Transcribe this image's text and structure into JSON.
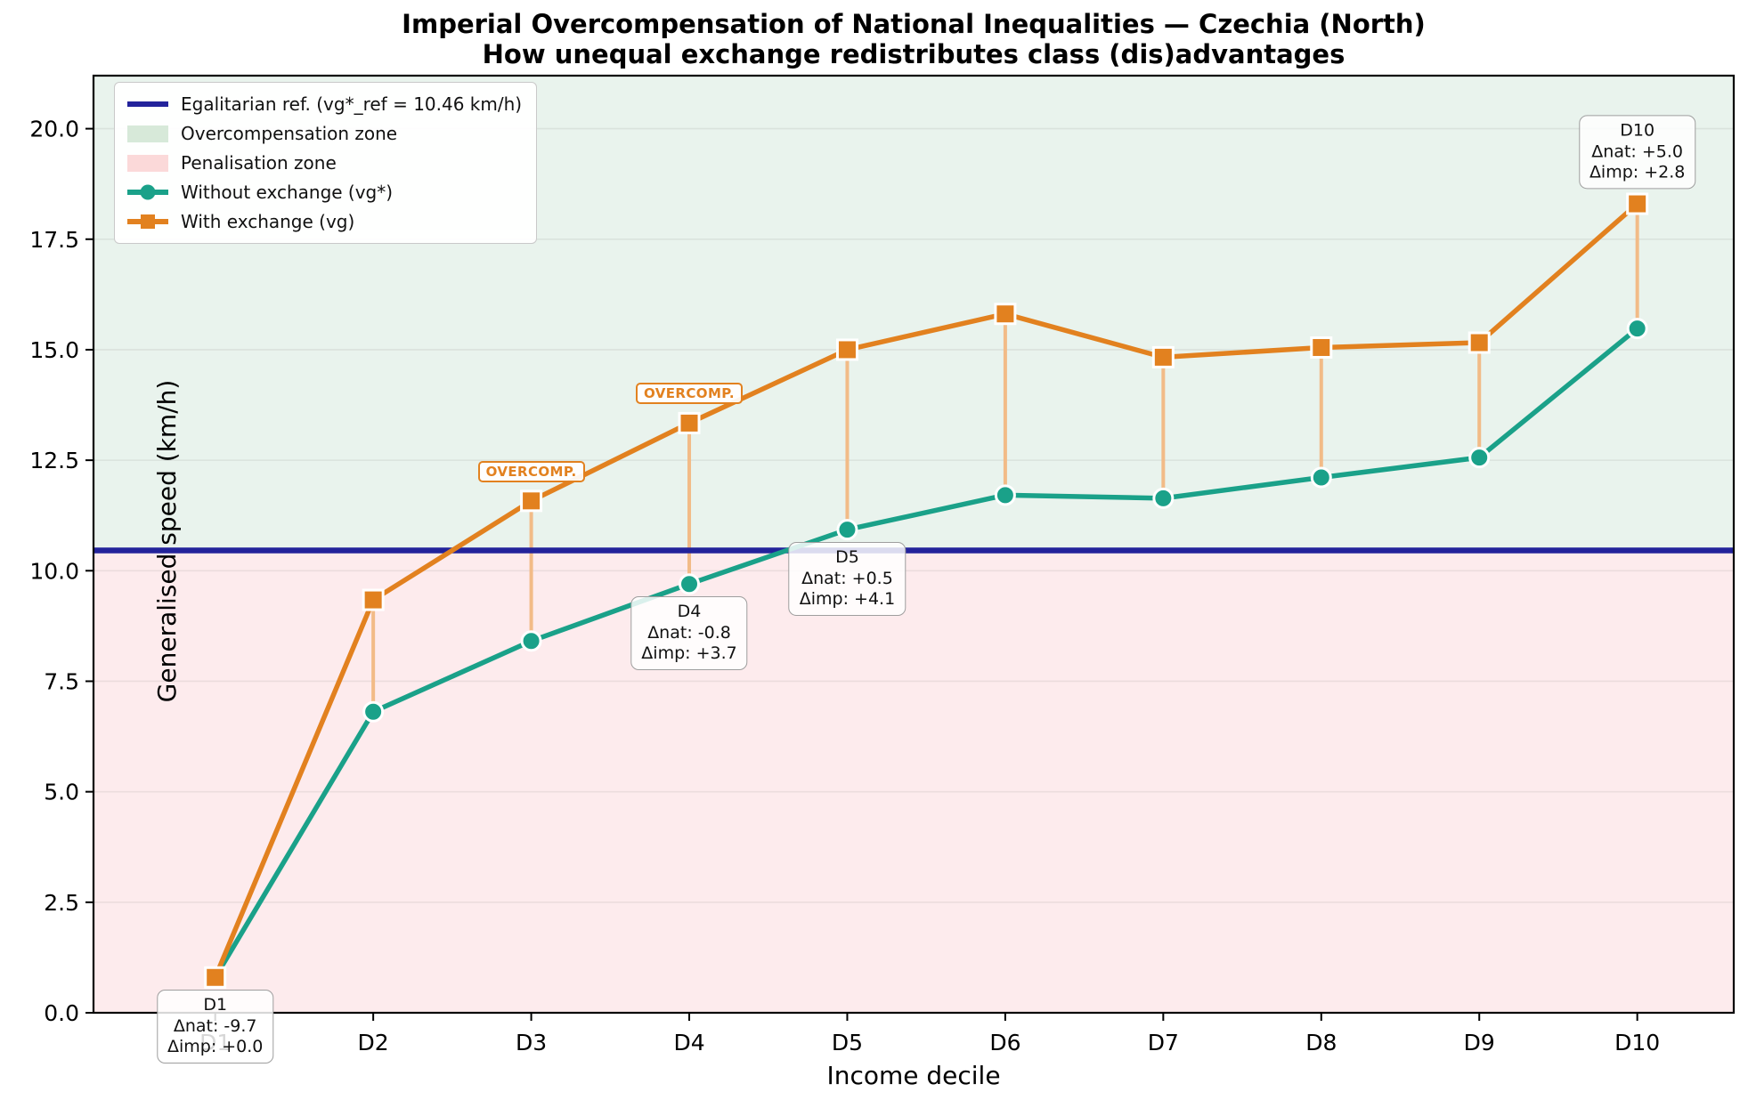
{
  "title": "Imperial Overcompensation of National Inequalities — Czechia (North)",
  "subtitle": "How unequal exchange redistributes class (dis)advantages",
  "chart_data": {
    "type": "line",
    "xlabel": "Income decile",
    "ylabel": "Generalised speed (km/h)",
    "categories": [
      "D1",
      "D2",
      "D3",
      "D4",
      "D5",
      "D6",
      "D7",
      "D8",
      "D9",
      "D10"
    ],
    "yticks": [
      "0.0",
      "2.5",
      "5.0",
      "7.5",
      "10.0",
      "12.5",
      "15.0",
      "17.5",
      "20.0"
    ],
    "ylim": [
      0,
      21.2
    ],
    "grid": true,
    "legend_position": "upper-left",
    "series": [
      {
        "name": "Without exchange (vg*)",
        "marker": "circle",
        "color": "#1aa189",
        "values": [
          0.8,
          6.81,
          8.41,
          9.7,
          10.93,
          11.71,
          11.64,
          12.11,
          12.56,
          15.48
        ]
      },
      {
        "name": "With exchange (vg)",
        "marker": "square",
        "color": "#e2811f",
        "values": [
          0.8,
          9.34,
          11.58,
          13.34,
          15.0,
          15.81,
          14.83,
          15.05,
          15.16,
          18.3
        ]
      }
    ],
    "reference": {
      "label": "Egalitarian ref. (vg*_ref = 10.46 km/h)",
      "value": 10.46,
      "color": "#23239b"
    },
    "zones": [
      {
        "label": "Overcompensation zone",
        "fill": "#e9f3ed",
        "legend_fill": "#d7e9d9",
        "position": "above_reference"
      },
      {
        "label": "Penalisation zone",
        "fill": "#fdebed",
        "legend_fill": "#fbd9d9",
        "position": "below_reference"
      }
    ],
    "connector_color": "#f2bb87",
    "annotations": [
      {
        "decile": "D1",
        "lines": [
          "Δnat: -9.7",
          "Δimp: +0.0"
        ],
        "placement": "below",
        "anchor_series": 0
      },
      {
        "decile": "D4",
        "lines": [
          "Δnat: -0.8",
          "Δimp: +3.7"
        ],
        "placement": "below",
        "anchor_series": 0
      },
      {
        "decile": "D5",
        "lines": [
          "Δnat: +0.5",
          "Δimp: +4.1"
        ],
        "placement": "below",
        "anchor_series": 0
      },
      {
        "decile": "D10",
        "lines": [
          "Δnat: +5.0",
          "Δimp: +2.8"
        ],
        "placement": "above",
        "anchor_series": 1
      }
    ],
    "overcompensation_flags": {
      "text": "OVERCOMP.",
      "deciles": [
        "D3",
        "D4"
      ]
    }
  }
}
